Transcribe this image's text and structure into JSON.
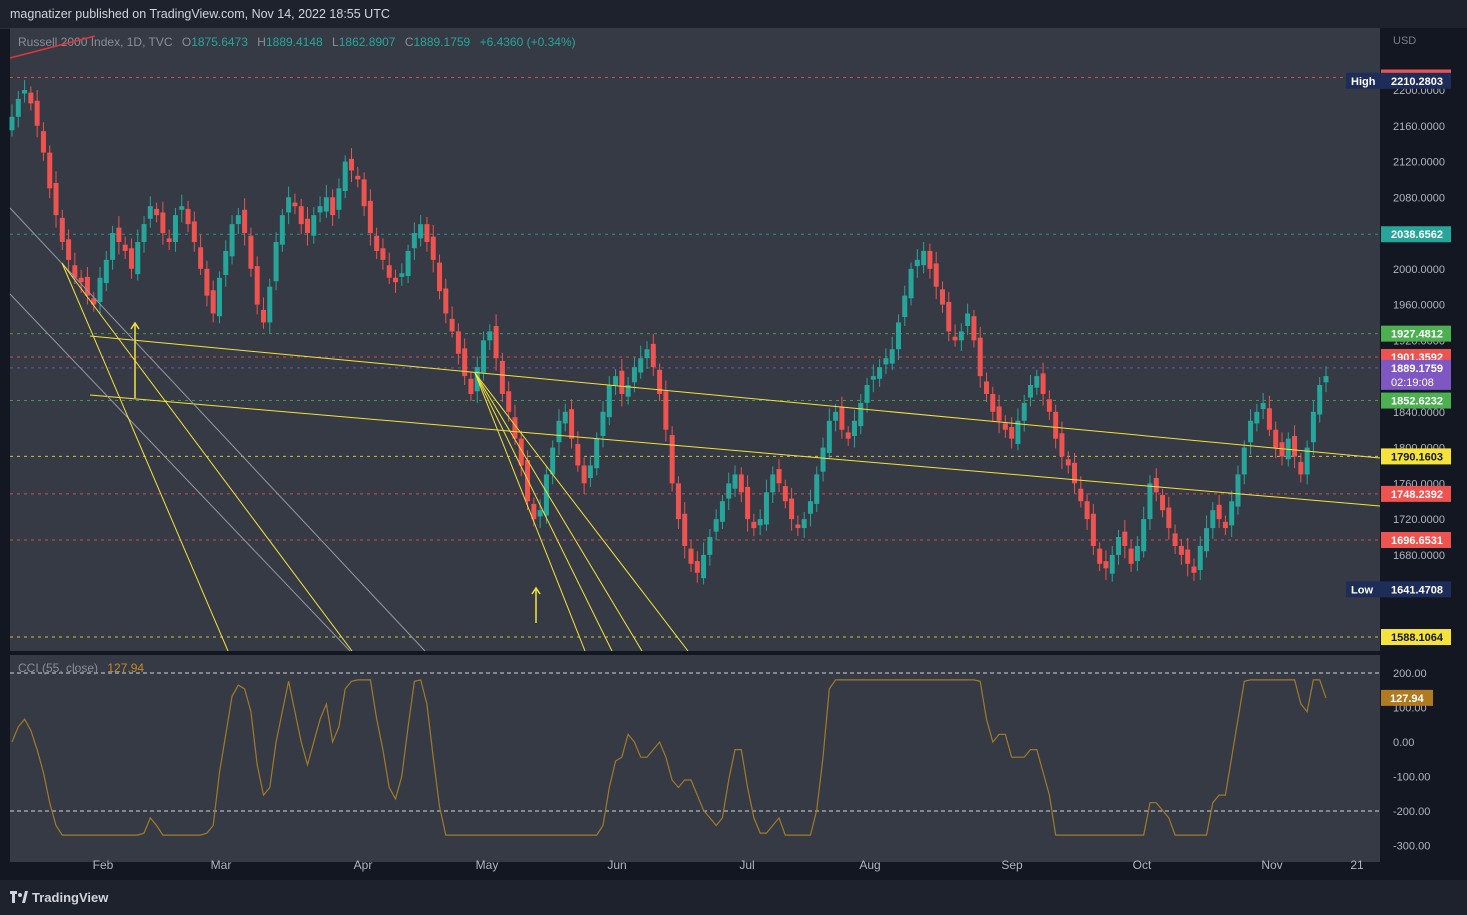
{
  "header": {
    "publish_text": "magnatizer published on TradingView.com, Nov 14, 2022 18:55 UTC"
  },
  "legend": {
    "symbol": "Russell 2000 Index, 1D, TVC",
    "o_label": "O",
    "o_value": "1875.6473",
    "h_label": "H",
    "h_value": "1889.4148",
    "l_label": "L",
    "l_value": "1862.8907",
    "c_label": "C",
    "c_value": "1889.1759",
    "change": "+6.4360 (+0.34%)"
  },
  "cci_legend": {
    "name": "CCI (55, close)",
    "value": "127.94"
  },
  "footer": {
    "brand": "TradingView"
  },
  "colors": {
    "bg": "#131722",
    "pane": "#363a45",
    "up": "#26a69a",
    "down": "#ef5350",
    "trend": "#f5e23b",
    "gray_line": "#9598a1",
    "cci": "#a07a2a"
  },
  "chart_data": [
    {
      "type": "candlestick",
      "title": "Russell 2000 Index, 1D, TVC",
      "currency": "USD",
      "ylim": [
        1588,
        2250
      ],
      "x_ticks": [
        "Feb",
        "Mar",
        "Apr",
        "May",
        "Jun",
        "Jul",
        "Aug",
        "Sep",
        "Oct",
        "Nov",
        "21"
      ],
      "y_ticks": [
        "2200.0000",
        "2160.0000",
        "2120.0000",
        "2080.0000",
        "2040.0000",
        "2000.0000",
        "1960.0000",
        "1920.0000",
        "1880.0000",
        "1840.0000",
        "1800.0000",
        "1760.0000",
        "1720.0000",
        "1680.0000"
      ],
      "y_tick_values": [
        2200,
        2160,
        2120,
        2080,
        2040,
        2000,
        1960,
        1920,
        1880,
        1840,
        1800,
        1760,
        1720,
        1680
      ],
      "price_markers": [
        {
          "label": "2213.9975",
          "value": 2213.9975,
          "color": "#ef5350"
        },
        {
          "label": "2210.2803",
          "value": 2210.2803,
          "color": "#1e2c5a",
          "tag": "High"
        },
        {
          "label": "2038.6562",
          "value": 2038.6562,
          "color": "#26a69a"
        },
        {
          "label": "1927.4812",
          "value": 1927.4812,
          "color": "#4caf50"
        },
        {
          "label": "1901.3592",
          "value": 1901.3592,
          "color": "#ef5350"
        },
        {
          "label": "1889.1759",
          "value": 1889.1759,
          "color": "#7e57c2",
          "sub": "02:19:08"
        },
        {
          "label": "1852.6232",
          "value": 1852.6232,
          "color": "#4caf50"
        },
        {
          "label": "1790.1603",
          "value": 1790.1603,
          "color": "#f5e23b",
          "text_color": "#131722"
        },
        {
          "label": "1748.2392",
          "value": 1748.2392,
          "color": "#ef5350"
        },
        {
          "label": "1696.6531",
          "value": 1696.6531,
          "color": "#ef5350"
        },
        {
          "label": "1641.4708",
          "value": 1641.4708,
          "color": "#1e2c5a",
          "tag": "Low"
        },
        {
          "label": "1588.1064",
          "value": 1588.1064,
          "color": "#f5e23b",
          "text_color": "#131722"
        }
      ],
      "high_tag": "High",
      "low_tag": "Low",
      "closes": [
        2170,
        2190,
        2200,
        2185,
        2160,
        2130,
        2090,
        2060,
        2030,
        2010,
        1990,
        1985,
        1970,
        1960,
        1990,
        2010,
        2040,
        2030,
        2020,
        2000,
        2030,
        2050,
        2070,
        2060,
        2040,
        2030,
        2060,
        2070,
        2050,
        2030,
        2000,
        1970,
        1950,
        1990,
        2020,
        2050,
        2060,
        2040,
        2000,
        1960,
        1940,
        1980,
        2030,
        2060,
        2080,
        2070,
        2050,
        2040,
        2060,
        2070,
        2080,
        2060,
        2090,
        2120,
        2110,
        2100,
        2070,
        2040,
        2020,
        2010,
        1990,
        1985,
        1995,
        2020,
        2040,
        2050,
        2030,
        2010,
        1975,
        1950,
        1930,
        1905,
        1880,
        1860,
        1890,
        1920,
        1930,
        1900,
        1860,
        1840,
        1810,
        1780,
        1740,
        1720,
        1730,
        1770,
        1800,
        1830,
        1840,
        1810,
        1780,
        1760,
        1780,
        1810,
        1840,
        1870,
        1880,
        1860,
        1870,
        1890,
        1900,
        1910,
        1890,
        1860,
        1820,
        1760,
        1720,
        1690,
        1670,
        1660,
        1680,
        1700,
        1720,
        1740,
        1760,
        1770,
        1750,
        1720,
        1710,
        1720,
        1750,
        1770,
        1760,
        1740,
        1720,
        1710,
        1720,
        1740,
        1770,
        1800,
        1830,
        1840,
        1820,
        1810,
        1830,
        1850,
        1870,
        1880,
        1890,
        1900,
        1910,
        1940,
        1970,
        2000,
        2010,
        2020,
        2000,
        1980,
        1960,
        1930,
        1920,
        1930,
        1950,
        1920,
        1880,
        1860,
        1840,
        1830,
        1820,
        1810,
        1830,
        1850,
        1870,
        1880,
        1860,
        1840,
        1810,
        1790,
        1780,
        1760,
        1740,
        1720,
        1690,
        1670,
        1665,
        1680,
        1700,
        1690,
        1670,
        1690,
        1720,
        1760,
        1750,
        1730,
        1710,
        1690,
        1680,
        1670,
        1660,
        1690,
        1710,
        1730,
        1720,
        1710,
        1740,
        1770,
        1800,
        1830,
        1840,
        1850,
        1820,
        1800,
        1790,
        1810,
        1790,
        1770,
        1800,
        1840,
        1870,
        1880
      ],
      "trendlines_note": "yellow and gray drawn trend lines"
    },
    {
      "type": "line",
      "title": "CCI (55, close)",
      "current": 127.94,
      "ylim": [
        -330,
        230
      ],
      "y_ticks": [
        "200.00",
        "100.00",
        "0.00",
        "-100.00",
        "-200.00",
        "-300.00"
      ],
      "y_tick_values": [
        200,
        100,
        0,
        -100,
        -200,
        -300
      ],
      "levels": [
        200,
        -200
      ],
      "value_label": "127.94"
    }
  ]
}
